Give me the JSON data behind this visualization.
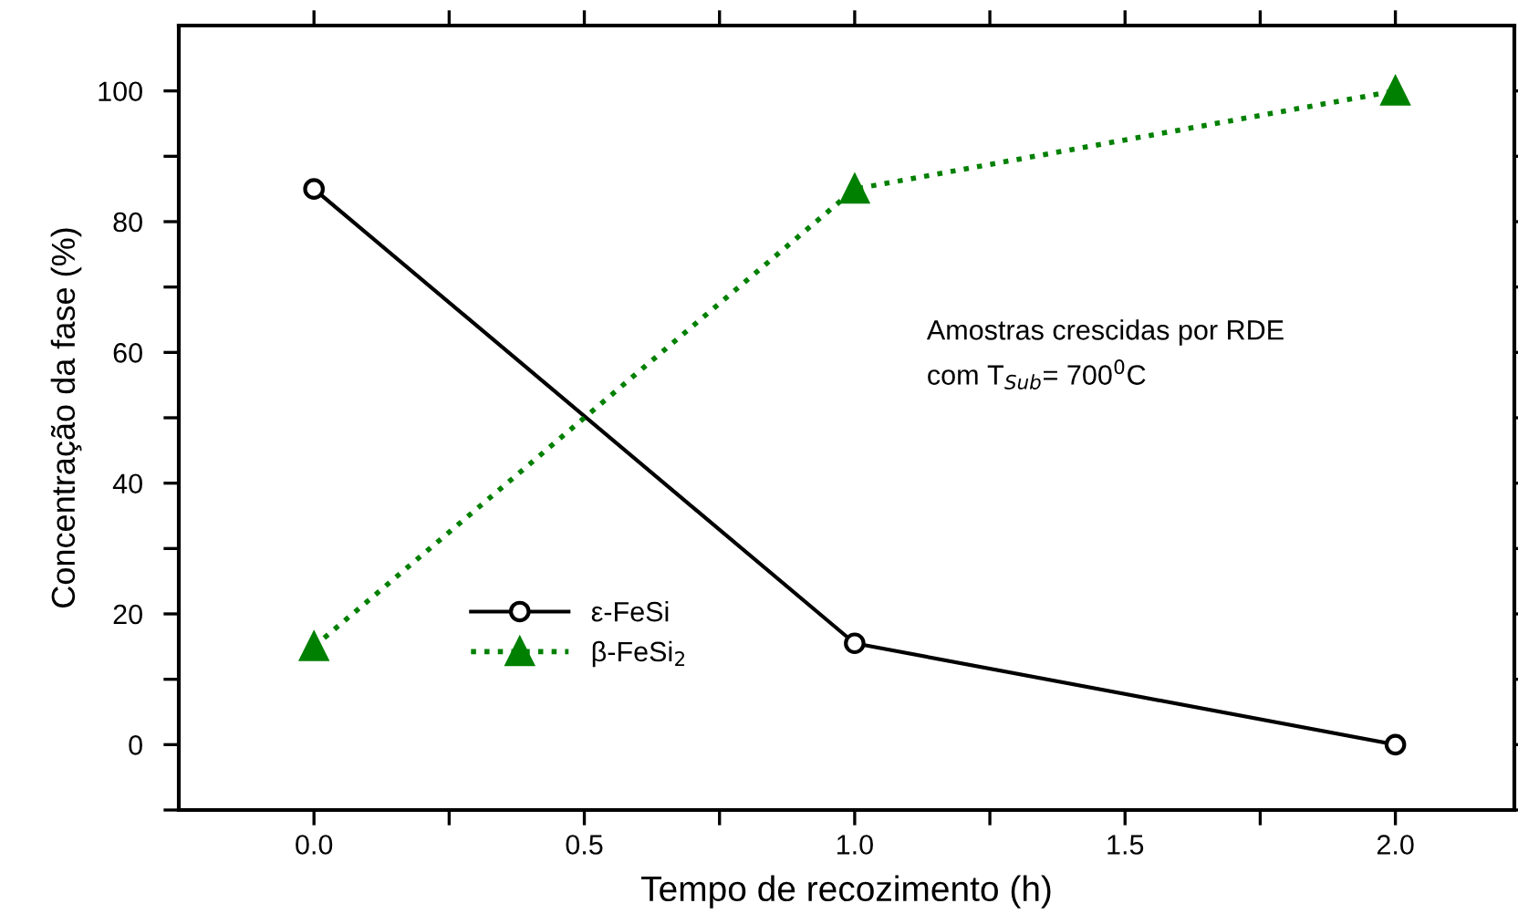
{
  "chart_data": {
    "type": "line",
    "xlabel": "Tempo de recozimento (h)",
    "ylabel": "Concentração da fase (%)",
    "x": [
      0.0,
      1.0,
      2.0
    ],
    "series": [
      {
        "name": "ε-FeSi",
        "color": "#000000",
        "values": [
          85,
          15.5,
          0
        ],
        "marker": "circle",
        "line_style": "solid"
      },
      {
        "name": "β-FeSi$_{2}$",
        "color": "#008000",
        "values": [
          15,
          85,
          100
        ],
        "marker": "triangle",
        "line_style": "dotted"
      }
    ],
    "xlim": [
      -0.25,
      2.22
    ],
    "xticks": [
      {
        "value": 0.0,
        "label": "0.0"
      },
      {
        "value": 0.25,
        "label": null
      },
      {
        "value": 0.5,
        "label": "0.5"
      },
      {
        "value": 0.75,
        "label": null
      },
      {
        "value": 1.0,
        "label": "1.0"
      },
      {
        "value": 1.25,
        "label": null
      },
      {
        "value": 1.5,
        "label": "1.5"
      },
      {
        "value": 1.75,
        "label": null
      },
      {
        "value": 2.0,
        "label": "2.0"
      }
    ],
    "ylim": [
      -10,
      110
    ],
    "yticks": [
      {
        "value": -10,
        "label": null
      },
      0,
      {
        "value": 10,
        "label": null
      },
      20,
      {
        "value": 30,
        "label": null
      },
      40,
      {
        "value": 50,
        "label": null
      },
      60,
      {
        "value": 70,
        "label": null
      },
      80,
      {
        "value": 90,
        "label": null
      },
      100
    ],
    "annotations": [
      {
        "text": "Amostras crescidas por RDE\ncom T$_{Sub}$= 700$^{0}$C"
      }
    ],
    "legend": "bottom left",
    "grid": false
  }
}
